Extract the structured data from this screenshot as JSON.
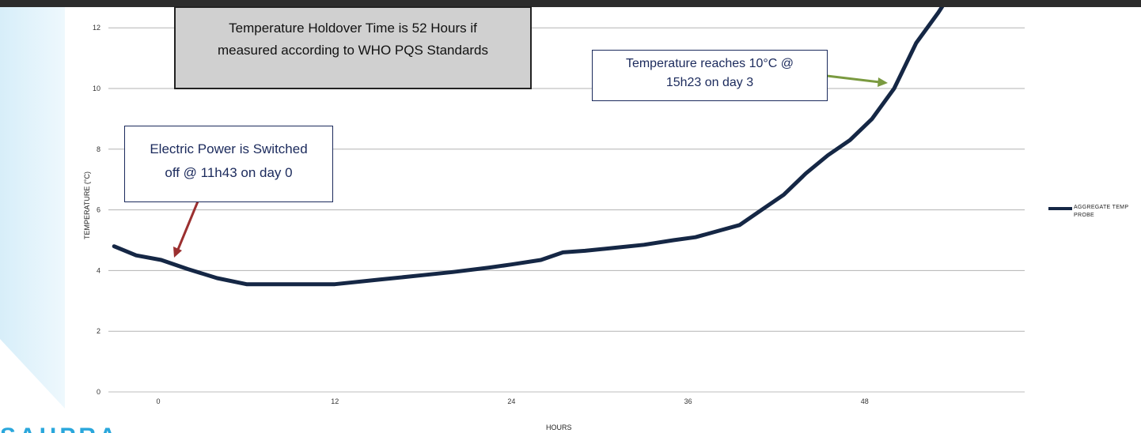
{
  "chart_data": {
    "type": "line",
    "xlabel": "HOURS",
    "ylabel": "TEMPERATURE (°C)",
    "x_ticks": [
      0,
      12,
      24,
      36,
      48
    ],
    "y_ticks": [
      0,
      2,
      4,
      6,
      8,
      10,
      12
    ],
    "xlim": [
      -3,
      63
    ],
    "ylim": [
      0,
      12.5
    ],
    "grid": true,
    "legend_position": "right",
    "series": [
      {
        "name": "AGGREGATE TEMP PROBE",
        "color": "#152745",
        "x": [
          -3,
          -1.5,
          0.2,
          2,
          4,
          6,
          9,
          12,
          15,
          18,
          20,
          22.5,
          24,
          26,
          27.5,
          29,
          31,
          33,
          35,
          36.5,
          38,
          39.5,
          41,
          42.5,
          44,
          45.5,
          47,
          48.5,
          50,
          51.5,
          53,
          55
        ],
        "values": [
          4.8,
          4.5,
          4.35,
          4.05,
          3.75,
          3.55,
          3.55,
          3.55,
          3.7,
          3.85,
          3.95,
          4.1,
          4.2,
          4.35,
          4.6,
          4.65,
          4.75,
          4.85,
          5.0,
          5.1,
          5.3,
          5.5,
          6.0,
          6.5,
          7.2,
          7.8,
          8.3,
          9.0,
          10.0,
          11.5,
          12.5,
          14.0
        ]
      }
    ]
  },
  "callouts": {
    "holdover_line1": "Temperature Holdover Time is 52 Hours if",
    "holdover_line2": "measured according to WHO PQS Standards",
    "reaches_line1": "Temperature reaches 10°C  @",
    "reaches_line2": "15h23 on day 3",
    "power_line1": "Electric Power is Switched",
    "power_line2": "off @ 11h43 on day 0"
  },
  "colors": {
    "line": "#152745",
    "red_arrow": "#9b3030",
    "green_arrow": "#7a9a40",
    "logo": "#2aa7dc"
  },
  "footer": {
    "logo_text": "SAHPRA"
  }
}
